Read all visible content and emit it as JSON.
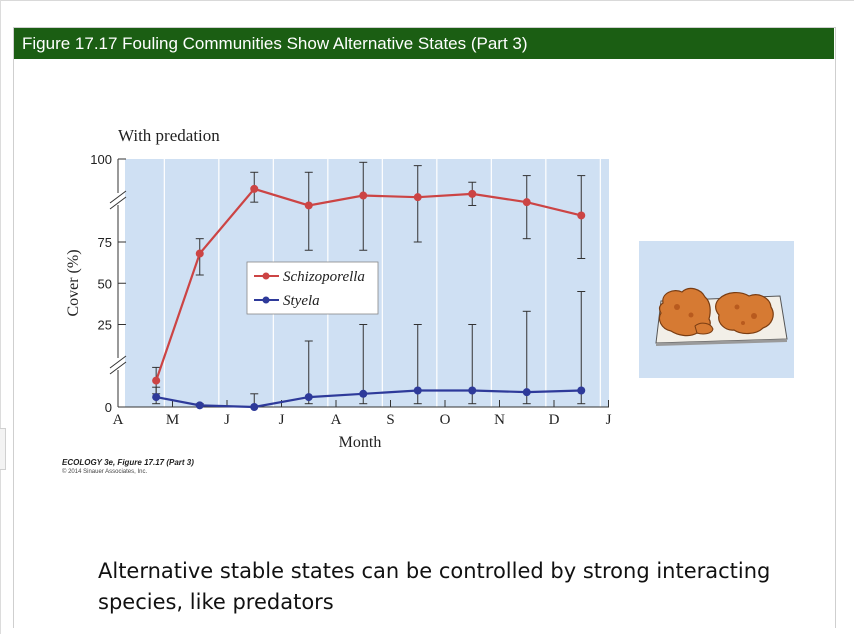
{
  "slide": {
    "title": "Figure 17.17 Fouling Communities Show Alternative States (Part 3)",
    "credit_title": "ECOLOGY 3e, Figure 17.17 (Part 3)",
    "credit_sub": "© 2014 Sinauer Associates, Inc.",
    "caption": "Alternative stable states can be controlled by strong interacting species, like predators"
  },
  "colors": {
    "title_bar": "#1b5e13",
    "plot_bg": "#cfe0f3",
    "schizoporella": "#cc4444",
    "styela": "#2e3a9a"
  },
  "icons": {
    "thumbnail": "fouling-plate-illustration"
  },
  "chart_data": {
    "type": "line",
    "title": "With predation",
    "xlabel": "Month",
    "ylabel": "Cover (%)",
    "x_ticks": [
      "A",
      "M",
      "J",
      "J",
      "A",
      "S",
      "O",
      "N",
      "D",
      "J"
    ],
    "y_ticks": [
      0,
      25,
      50,
      75,
      100
    ],
    "ylim": [
      0,
      100
    ],
    "axis_breaks": "y-axis broken between 0–25 and 75–100",
    "grid": true,
    "legend_position": "center",
    "series": [
      {
        "name": "Schizoporella",
        "x": [
          0.7,
          1.5,
          2.5,
          3.5,
          4.5,
          5.5,
          6.5,
          7.5,
          8.5
        ],
        "y": [
          8,
          68,
          91,
          86,
          89,
          88.5,
          89.5,
          87,
          83
        ],
        "error_low": [
          4,
          55,
          87,
          70,
          70,
          75,
          86,
          76,
          65
        ],
        "error_high": [
          12,
          76,
          96,
          96,
          99,
          98,
          93,
          95,
          95
        ]
      },
      {
        "name": "Styela",
        "x": [
          0.7,
          1.5,
          2.5,
          3.5,
          4.5,
          5.5,
          6.5,
          7.5,
          8.5
        ],
        "y": [
          3,
          0.5,
          0,
          3,
          4,
          5,
          5,
          4.5,
          5
        ],
        "error_low": [
          1,
          0.5,
          0,
          1,
          1,
          1,
          1,
          1,
          1
        ],
        "error_high": [
          6,
          1,
          4,
          20,
          25,
          25,
          25,
          33,
          45
        ]
      }
    ]
  }
}
